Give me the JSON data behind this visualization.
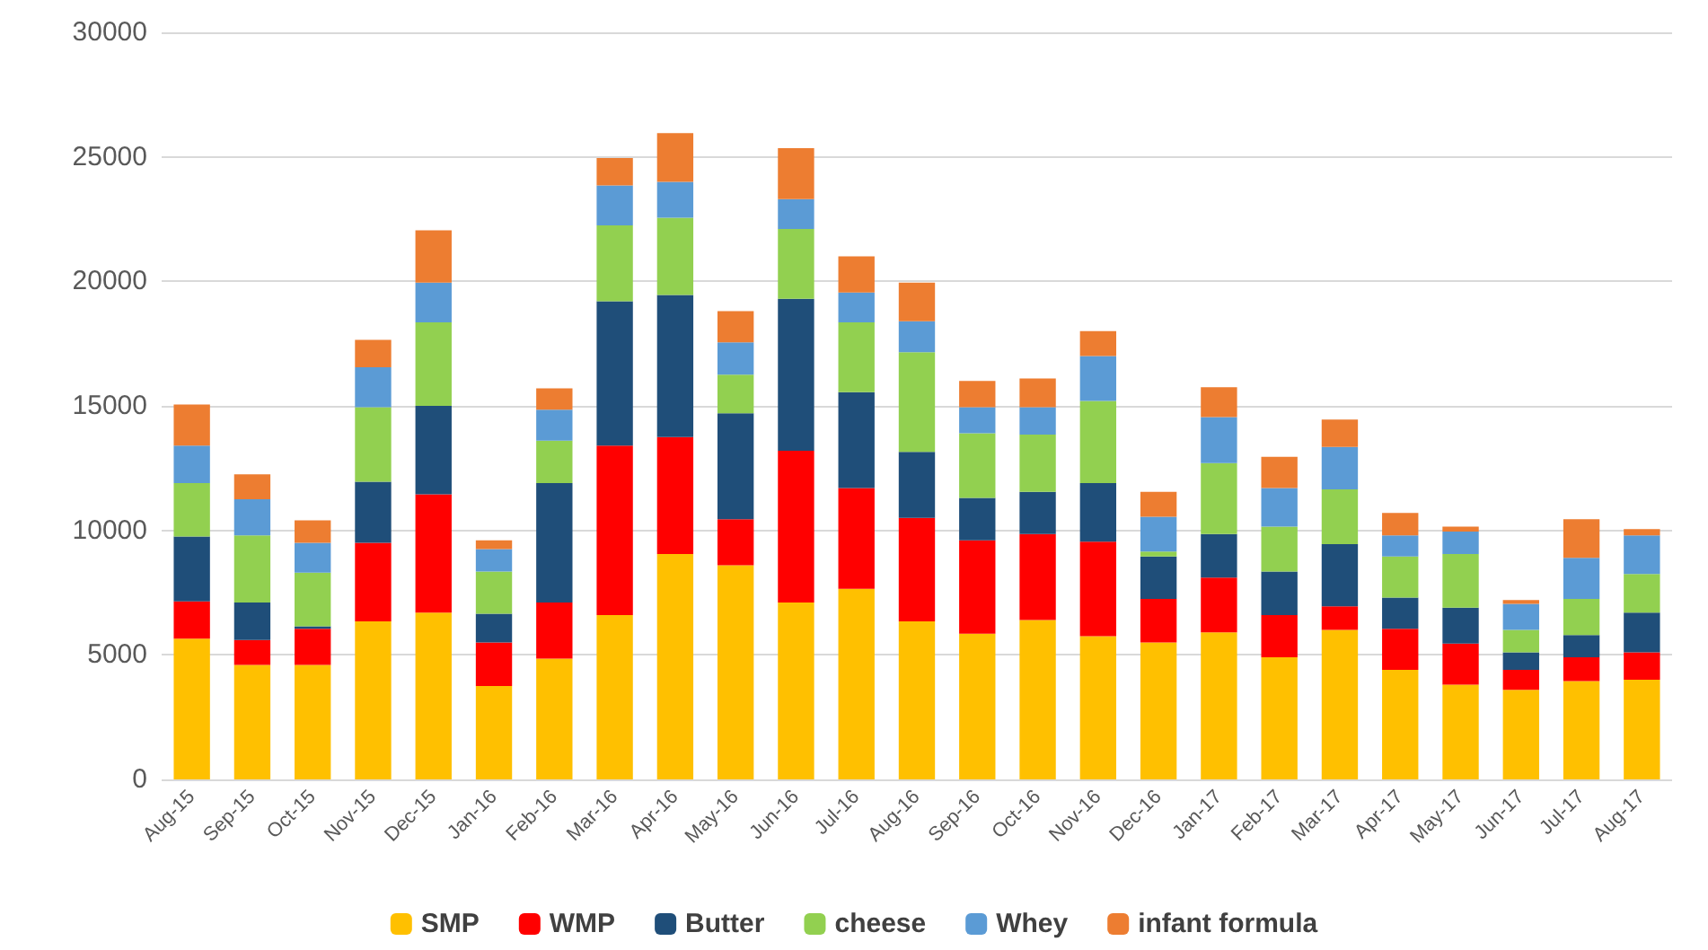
{
  "chart_data": {
    "type": "bar",
    "stacked": true,
    "categories": [
      "Aug-15",
      "Sep-15",
      "Oct-15",
      "Nov-15",
      "Dec-15",
      "Jan-16",
      "Feb-16",
      "Mar-16",
      "Apr-16",
      "May-16",
      "Jun-16",
      "Jul-16",
      "Aug-16",
      "Sep-16",
      "Oct-16",
      "Nov-16",
      "Dec-16",
      "Jan-17",
      "Feb-17",
      "Mar-17",
      "Apr-17",
      "May-17",
      "Jun-17",
      "Jul-17",
      "Aug-17"
    ],
    "series": [
      {
        "name": "SMP",
        "color": "#ffc000",
        "values": [
          5650,
          4600,
          4600,
          6350,
          6700,
          3750,
          4850,
          6600,
          9050,
          8600,
          7100,
          7650,
          6350,
          5850,
          6400,
          5750,
          5500,
          5900,
          4900,
          6000,
          4400,
          3800,
          3600,
          3950,
          4000
        ]
      },
      {
        "name": "WMP",
        "color": "#ff0000",
        "values": [
          1500,
          1000,
          1450,
          3150,
          4750,
          1750,
          2250,
          6800,
          4700,
          1850,
          6100,
          4050,
          4150,
          3750,
          3450,
          3800,
          1750,
          2200,
          1700,
          950,
          1650,
          1650,
          800,
          950,
          1100
        ]
      },
      {
        "name": "Butter",
        "color": "#1f4e79",
        "values": [
          2600,
          1500,
          100,
          2450,
          3550,
          1150,
          4800,
          5800,
          5700,
          4250,
          6100,
          3850,
          2650,
          1700,
          1700,
          2350,
          1700,
          1750,
          1750,
          2500,
          1250,
          1450,
          700,
          900,
          1600
        ]
      },
      {
        "name": "cheese",
        "color": "#92d050",
        "values": [
          2150,
          2700,
          2150,
          3000,
          3350,
          1700,
          1700,
          3050,
          3100,
          1550,
          2800,
          2800,
          4000,
          2600,
          2300,
          3300,
          200,
          2850,
          1800,
          2200,
          1650,
          2150,
          900,
          1450,
          1550
        ]
      },
      {
        "name": "Whey",
        "color": "#5b9bd5",
        "values": [
          1500,
          1450,
          1200,
          1600,
          1600,
          900,
          1250,
          1600,
          1450,
          1300,
          1200,
          1200,
          1250,
          1050,
          1100,
          1800,
          1400,
          1850,
          1550,
          1700,
          850,
          900,
          1050,
          1650,
          1550
        ]
      },
      {
        "name": "infant formula",
        "color": "#ed7d31",
        "values": [
          1650,
          1000,
          900,
          1100,
          2100,
          350,
          850,
          1100,
          1950,
          1250,
          2050,
          1450,
          1550,
          1050,
          1150,
          1000,
          1000,
          1200,
          1250,
          1100,
          900,
          200,
          150,
          1550,
          250
        ]
      }
    ],
    "ylim": [
      0,
      30000
    ],
    "yticks": [
      0,
      5000,
      10000,
      15000,
      20000,
      25000,
      30000
    ],
    "grid": "y",
    "legend": "bottom"
  }
}
